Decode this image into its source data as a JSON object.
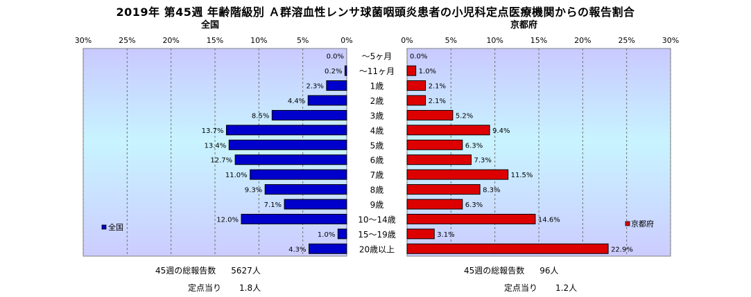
{
  "title": "2019年 第45週 年齢階級別 Ａ群溶血性レンサ球菌咽頭炎患者の小児科定点医療機関からの報告割合",
  "chart_data": [
    {
      "type": "bar",
      "orientation": "horizontal",
      "title": "全国",
      "categories": [
        "～5ヶ月",
        "～11ヶ月",
        "1歳",
        "2歳",
        "3歳",
        "4歳",
        "5歳",
        "6歳",
        "7歳",
        "8歳",
        "9歳",
        "10～14歳",
        "15～19歳",
        "20歳以上"
      ],
      "series": [
        {
          "name": "全国",
          "color": "#0000cc",
          "values": [
            0.0,
            0.2,
            2.3,
            4.4,
            8.5,
            13.7,
            13.4,
            12.7,
            11.0,
            9.3,
            7.1,
            12.0,
            1.0,
            4.3
          ],
          "labels": [
            "0.0%",
            "0.2%",
            "2.3%",
            "4.4%",
            "8.5%",
            "13.7%",
            "13.4%",
            "12.7%",
            "11.0%",
            "9.3%",
            "7.1%",
            "12.0%",
            "1.0%",
            "4.3%"
          ]
        }
      ],
      "xlim": [
        0,
        30
      ],
      "x_reversed": true,
      "ticks": [
        "30%",
        "25%",
        "20%",
        "15%",
        "10%",
        "5%",
        "0%"
      ],
      "legend": "bottom-left"
    },
    {
      "type": "bar",
      "orientation": "horizontal",
      "title": "京都府",
      "categories": [
        "～5ヶ月",
        "～11ヶ月",
        "1歳",
        "2歳",
        "3歳",
        "4歳",
        "5歳",
        "6歳",
        "7歳",
        "8歳",
        "9歳",
        "10～14歳",
        "15～19歳",
        "20歳以上"
      ],
      "series": [
        {
          "name": "京都府",
          "color": "#dd0000",
          "values": [
            0.0,
            1.0,
            2.1,
            2.1,
            5.2,
            9.4,
            6.3,
            7.3,
            11.5,
            8.3,
            6.3,
            14.6,
            3.1,
            22.9
          ],
          "labels": [
            "0.0%",
            "1.0%",
            "2.1%",
            "2.1%",
            "5.2%",
            "9.4%",
            "6.3%",
            "7.3%",
            "11.5%",
            "8.3%",
            "6.3%",
            "14.6%",
            "3.1%",
            "22.9%"
          ]
        }
      ],
      "xlim": [
        0,
        30
      ],
      "ticks": [
        "0%",
        "5%",
        "10%",
        "15%",
        "20%",
        "25%",
        "30%"
      ],
      "legend": "bottom-right"
    }
  ],
  "footer": {
    "national": {
      "total_label": "45週の総報告数",
      "total_value": "5627人",
      "per_label": "定点当り",
      "per_value": "1.8人"
    },
    "kyoto": {
      "total_label": "45週の総報告数",
      "total_value": "96人",
      "per_label": "定点当り",
      "per_value": "1.2人"
    }
  }
}
